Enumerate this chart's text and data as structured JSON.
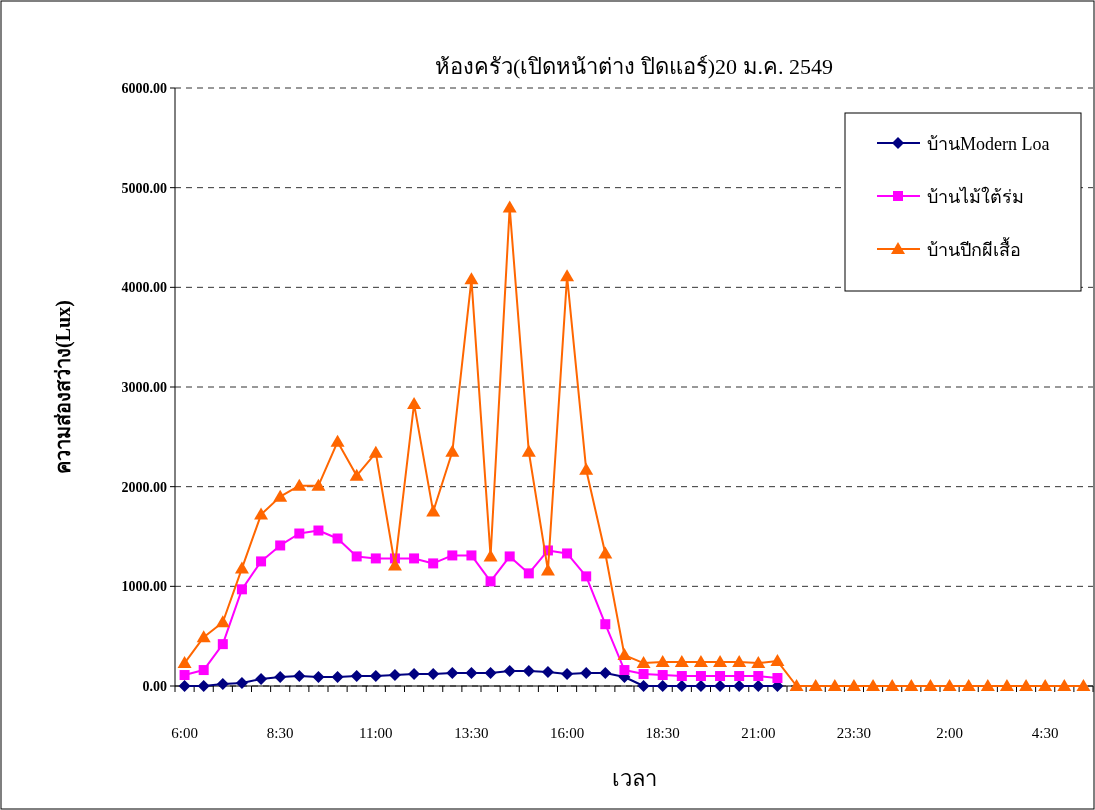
{
  "chart_data": {
    "type": "line",
    "title": "ห้องครัว(เปิดหน้าต่าง ปิดแอร์)20 ม.ค. 2549",
    "xlabel": "เวลา",
    "ylabel": "ความส่องสว่าง(Lux)",
    "categories": [
      "6:00",
      null,
      null,
      null,
      null,
      "8:30",
      null,
      null,
      null,
      null,
      "11:00",
      null,
      null,
      null,
      null,
      "13:30",
      null,
      null,
      null,
      null,
      "16:00",
      null,
      null,
      null,
      null,
      "18:30",
      null,
      null,
      null,
      null,
      "21:00",
      null,
      null,
      null,
      null,
      "23:30",
      null,
      null,
      null,
      null,
      "2:00",
      null,
      null,
      null,
      null,
      "4:30",
      null,
      null
    ],
    "series": [
      {
        "name": "บ้านModern Loa",
        "color": "#000080",
        "marker": "diamond",
        "values": [
          0,
          0,
          20,
          30,
          70,
          90,
          100,
          90,
          90,
          100,
          100,
          110,
          120,
          120,
          130,
          130,
          130,
          150,
          150,
          140,
          120,
          130,
          130,
          90,
          0,
          0,
          0,
          0,
          0,
          0,
          0,
          0,
          null,
          null,
          null,
          null,
          null,
          null,
          null,
          null,
          null,
          null,
          null,
          null,
          null,
          null,
          null,
          null
        ]
      },
      {
        "name": "บ้านไม้ใต้ร่ม",
        "color": "#ff00ff",
        "marker": "square",
        "values": [
          110,
          160,
          420,
          970,
          1250,
          1410,
          1530,
          1560,
          1480,
          1300,
          1280,
          1280,
          1280,
          1230,
          1310,
          1310,
          1050,
          1300,
          1130,
          1360,
          1330,
          1100,
          620,
          160,
          120,
          110,
          100,
          100,
          100,
          100,
          100,
          80,
          null,
          null,
          null,
          null,
          null,
          null,
          null,
          null,
          null,
          null,
          null,
          null,
          null,
          null,
          null,
          null
        ]
      },
      {
        "name": "บ้านปีกผีเสื้อ",
        "color": "#ff6600",
        "marker": "triangle",
        "values": [
          230,
          490,
          640,
          1180,
          1720,
          1900,
          2010,
          2010,
          2450,
          2110,
          2340,
          1210,
          2830,
          1750,
          2350,
          4080,
          1300,
          4800,
          2350,
          1160,
          4110,
          2170,
          1330,
          310,
          230,
          240,
          240,
          240,
          240,
          240,
          230,
          250,
          0,
          0,
          0,
          0,
          0,
          0,
          0,
          0,
          0,
          0,
          0,
          0,
          0,
          0,
          0,
          0
        ]
      }
    ],
    "ylim": [
      0,
      6000
    ],
    "yticks": [
      {
        "value": 0,
        "label": "0.00"
      },
      {
        "value": 1000,
        "label": "1000.00"
      },
      {
        "value": 2000,
        "label": "2000.00"
      },
      {
        "value": 3000,
        "label": "3000.00"
      },
      {
        "value": 4000,
        "label": "4000.00"
      },
      {
        "value": 5000,
        "label": "5000.00"
      },
      {
        "value": 6000,
        "label": "6000.00"
      }
    ],
    "grid": "y",
    "legend": "top right"
  }
}
